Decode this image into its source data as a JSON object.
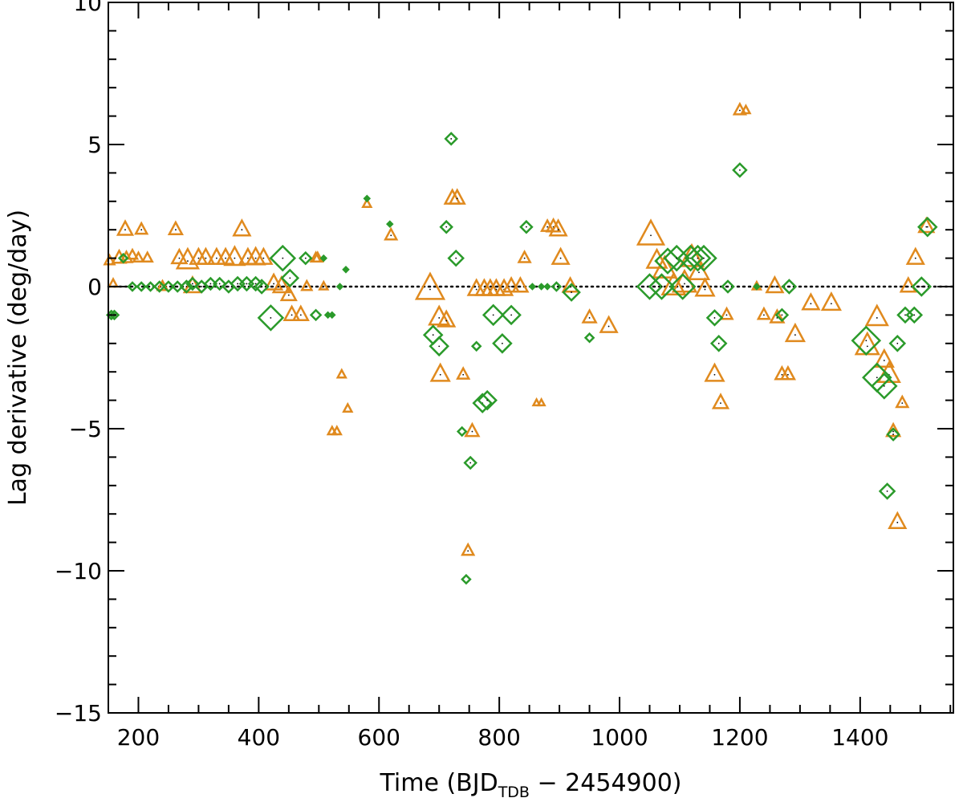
{
  "chart_data": {
    "type": "scatter",
    "title": "",
    "xlabel": {
      "prefix": "Time (BJD",
      "subscript": "TDB",
      "suffix": " − 2454900)"
    },
    "ylabel": "Lag derivative (deg/day)",
    "xlim": [
      150,
      1555
    ],
    "ylim": [
      -15,
      10
    ],
    "xticks": [
      200,
      400,
      600,
      800,
      1000,
      1200,
      1400
    ],
    "xtick_labels": [
      "200",
      "400",
      "600",
      "800",
      "1000",
      "1200",
      "1400"
    ],
    "yticks": [
      -15,
      -10,
      -5,
      0,
      5,
      10
    ],
    "ytick_labels": [
      "−15",
      "−10",
      "−5",
      "0",
      "5",
      "10"
    ],
    "reference_line": {
      "y": 0,
      "style": "dotted"
    },
    "colors": {
      "orange_series": "#e08a1e",
      "green_series": "#2a9a2a",
      "axis": "#000000"
    },
    "series": [
      {
        "name": "orange",
        "marker": "triangle",
        "points": [
          [
            152,
            0.9,
            6
          ],
          [
            158,
            0.1,
            5
          ],
          [
            168,
            1.0,
            8
          ],
          [
            178,
            2.0,
            9
          ],
          [
            180,
            1.0,
            7
          ],
          [
            190,
            1.1,
            6
          ],
          [
            200,
            1.0,
            6
          ],
          [
            205,
            2.0,
            7
          ],
          [
            215,
            1.0,
            6
          ],
          [
            240,
            0.0,
            6
          ],
          [
            262,
            2.0,
            8
          ],
          [
            268,
            1.0,
            9
          ],
          [
            282,
            0.9,
            13
          ],
          [
            290,
            0.0,
            10
          ],
          [
            300,
            1.0,
            10
          ],
          [
            312,
            1.0,
            10
          ],
          [
            330,
            1.0,
            10
          ],
          [
            345,
            1.0,
            10
          ],
          [
            360,
            1.0,
            12
          ],
          [
            372,
            2.0,
            10
          ],
          [
            382,
            1.0,
            10
          ],
          [
            395,
            1.0,
            11
          ],
          [
            408,
            1.0,
            10
          ],
          [
            425,
            0.1,
            10
          ],
          [
            438,
            0.0,
            10
          ],
          [
            450,
            -0.3,
            9
          ],
          [
            455,
            -1.0,
            9
          ],
          [
            470,
            -1.0,
            9
          ],
          [
            480,
            0.0,
            6
          ],
          [
            495,
            1.0,
            6
          ],
          [
            498,
            1.0,
            6
          ],
          [
            508,
            0.0,
            5
          ],
          [
            522,
            -5.1,
            5
          ],
          [
            530,
            -5.1,
            5
          ],
          [
            538,
            -3.1,
            5
          ],
          [
            548,
            -4.3,
            5
          ],
          [
            580,
            2.9,
            5
          ],
          [
            620,
            1.8,
            7
          ],
          [
            685,
            -0.1,
            17
          ],
          [
            700,
            -1.1,
            12
          ],
          [
            702,
            -3.1,
            11
          ],
          [
            712,
            -1.2,
            10
          ],
          [
            722,
            3.1,
            9
          ],
          [
            730,
            3.1,
            9
          ],
          [
            740,
            -3.1,
            7
          ],
          [
            748,
            -9.3,
            7
          ],
          [
            755,
            -5.1,
            8
          ],
          [
            762,
            -0.1,
            10
          ],
          [
            775,
            -0.1,
            10
          ],
          [
            785,
            -0.1,
            10
          ],
          [
            795,
            -0.1,
            10
          ],
          [
            808,
            -0.1,
            10
          ],
          [
            820,
            0.0,
            9
          ],
          [
            835,
            0.0,
            9
          ],
          [
            842,
            1.0,
            7
          ],
          [
            862,
            -4.1,
            4
          ],
          [
            870,
            -4.1,
            4
          ],
          [
            880,
            2.1,
            7
          ],
          [
            890,
            2.1,
            8
          ],
          [
            898,
            2.0,
            10
          ],
          [
            902,
            1.0,
            10
          ],
          [
            918,
            0.0,
            9
          ],
          [
            950,
            -1.1,
            8
          ],
          [
            982,
            -1.4,
            10
          ],
          [
            1052,
            1.8,
            16
          ],
          [
            1062,
            0.9,
            12
          ],
          [
            1075,
            0.6,
            14
          ],
          [
            1090,
            0.0,
            14
          ],
          [
            1108,
            0.1,
            14
          ],
          [
            1120,
            1.0,
            14
          ],
          [
            1132,
            0.5,
            12
          ],
          [
            1142,
            -0.1,
            11
          ],
          [
            1158,
            -3.1,
            11
          ],
          [
            1168,
            -4.1,
            9
          ],
          [
            1178,
            -1.0,
            7
          ],
          [
            1200,
            6.2,
            7
          ],
          [
            1210,
            6.2,
            5
          ],
          [
            1228,
            0.0,
            5
          ],
          [
            1240,
            -1.0,
            7
          ],
          [
            1258,
            0.0,
            10
          ],
          [
            1262,
            -1.1,
            8
          ],
          [
            1270,
            -3.1,
            8
          ],
          [
            1280,
            -3.1,
            8
          ],
          [
            1292,
            -1.7,
            11
          ],
          [
            1318,
            -0.6,
            10
          ],
          [
            1352,
            -0.6,
            11
          ],
          [
            1412,
            -2.1,
            14
          ],
          [
            1428,
            -1.1,
            13
          ],
          [
            1440,
            -2.6,
            11
          ],
          [
            1448,
            -3.1,
            13
          ],
          [
            1455,
            -5.1,
            8
          ],
          [
            1462,
            -8.3,
            10
          ],
          [
            1470,
            -4.1,
            7
          ],
          [
            1480,
            0.0,
            9
          ],
          [
            1492,
            1.0,
            10
          ],
          [
            1510,
            2.1,
            9
          ]
        ]
      },
      {
        "name": "green",
        "marker": "diamond",
        "points": [
          [
            155,
            -1.0,
            5
          ],
          [
            160,
            -1.0,
            5
          ],
          [
            175,
            1.0,
            5
          ],
          [
            190,
            0.0,
            5
          ],
          [
            205,
            0.0,
            5
          ],
          [
            220,
            0.0,
            5
          ],
          [
            235,
            0.0,
            6
          ],
          [
            250,
            0.0,
            6
          ],
          [
            265,
            0.0,
            6
          ],
          [
            280,
            0.0,
            7
          ],
          [
            290,
            0.1,
            7
          ],
          [
            305,
            0.0,
            7
          ],
          [
            320,
            0.1,
            7
          ],
          [
            335,
            0.1,
            7
          ],
          [
            350,
            0.0,
            7
          ],
          [
            365,
            0.1,
            8
          ],
          [
            380,
            0.1,
            8
          ],
          [
            395,
            0.1,
            8
          ],
          [
            405,
            0.0,
            8
          ],
          [
            420,
            -1.1,
            15
          ],
          [
            440,
            1.0,
            15
          ],
          [
            452,
            0.3,
            10
          ],
          [
            478,
            1.0,
            7
          ],
          [
            495,
            -1.0,
            6
          ],
          [
            508,
            1.0,
            3
          ],
          [
            515,
            -1.0,
            3
          ],
          [
            522,
            -1.0,
            3
          ],
          [
            535,
            0.0,
            3
          ],
          [
            545,
            0.6,
            3
          ],
          [
            580,
            3.1,
            3
          ],
          [
            618,
            2.2,
            3
          ],
          [
            690,
            -1.7,
            11
          ],
          [
            700,
            -2.1,
            11
          ],
          [
            712,
            2.1,
            7
          ],
          [
            720,
            5.2,
            7
          ],
          [
            728,
            1.0,
            9
          ],
          [
            738,
            -5.1,
            5
          ],
          [
            745,
            -10.3,
            5
          ],
          [
            752,
            -6.2,
            7
          ],
          [
            762,
            -2.1,
            5
          ],
          [
            772,
            -4.1,
            11
          ],
          [
            780,
            -4.0,
            11
          ],
          [
            790,
            -1.0,
            12
          ],
          [
            805,
            -2.0,
            11
          ],
          [
            820,
            -1.0,
            11
          ],
          [
            845,
            2.1,
            7
          ],
          [
            855,
            0.0,
            3
          ],
          [
            870,
            0.0,
            3
          ],
          [
            880,
            0.0,
            3
          ],
          [
            895,
            0.0,
            5
          ],
          [
            920,
            -0.2,
            10
          ],
          [
            950,
            -1.8,
            5
          ],
          [
            1050,
            0.0,
            15
          ],
          [
            1070,
            0.0,
            15
          ],
          [
            1080,
            0.9,
            15
          ],
          [
            1095,
            1.0,
            15
          ],
          [
            1105,
            0.0,
            15
          ],
          [
            1118,
            1.0,
            15
          ],
          [
            1130,
            1.0,
            15
          ],
          [
            1140,
            1.0,
            15
          ],
          [
            1158,
            -1.1,
            9
          ],
          [
            1165,
            -2.0,
            9
          ],
          [
            1180,
            0.0,
            7
          ],
          [
            1200,
            4.1,
            8
          ],
          [
            1228,
            0.0,
            3
          ],
          [
            1270,
            -1.0,
            7
          ],
          [
            1282,
            0.0,
            8
          ],
          [
            1410,
            -1.9,
            17
          ],
          [
            1428,
            -3.2,
            17
          ],
          [
            1440,
            -3.5,
            15
          ],
          [
            1445,
            -7.2,
            9
          ],
          [
            1455,
            -5.2,
            7
          ],
          [
            1462,
            -2.0,
            9
          ],
          [
            1475,
            -1.0,
            9
          ],
          [
            1490,
            -1.0,
            9
          ],
          [
            1502,
            0.0,
            11
          ],
          [
            1512,
            2.1,
            11
          ]
        ]
      }
    ]
  }
}
